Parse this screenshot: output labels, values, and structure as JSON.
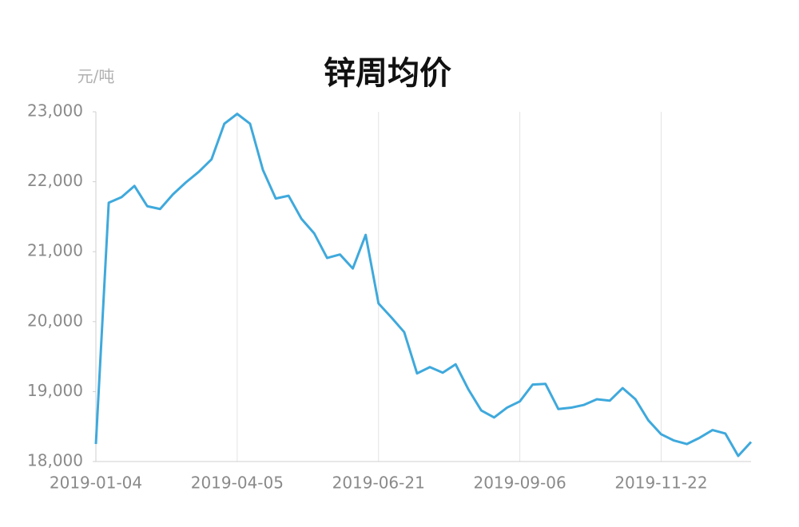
{
  "chart_data": {
    "type": "line",
    "title": "锌周均价",
    "y_label": "元/吨",
    "categories": [
      "2019-01-04",
      null,
      null,
      null,
      null,
      null,
      null,
      null,
      null,
      null,
      null,
      "2019-04-05",
      null,
      null,
      null,
      null,
      null,
      null,
      null,
      null,
      null,
      null,
      "2019-06-21",
      null,
      null,
      null,
      null,
      null,
      null,
      null,
      null,
      null,
      null,
      "2019-09-06",
      null,
      null,
      null,
      null,
      null,
      null,
      null,
      null,
      null,
      null,
      "2019-11-22",
      null,
      null,
      null,
      null,
      null,
      null,
      null
    ],
    "series": [
      {
        "name": "锌周均价",
        "color": "#3fa9dc",
        "values": [
          18250,
          21700,
          21780,
          21940,
          21650,
          21610,
          21820,
          21990,
          22140,
          22320,
          22830,
          22970,
          22830,
          22170,
          21760,
          21800,
          21470,
          21260,
          20910,
          20960,
          20760,
          21240,
          20260,
          20060,
          19850,
          19260,
          19350,
          19270,
          19390,
          19030,
          18730,
          18630,
          18770,
          18860,
          19100,
          19110,
          18750,
          18770,
          18810,
          18890,
          18870,
          19050,
          18890,
          18590,
          18390,
          18300,
          18250,
          18340,
          18450,
          18400,
          18080,
          18280
        ]
      }
    ],
    "ylim": [
      18000,
      23000
    ],
    "yticks": [
      {
        "value": 18000,
        "label": "18,000"
      },
      {
        "value": 19000,
        "label": "19,000"
      },
      {
        "value": 20000,
        "label": "20,000"
      },
      {
        "value": 21000,
        "label": "21,000"
      },
      {
        "value": 22000,
        "label": "22,000"
      },
      {
        "value": 23000,
        "label": "23,000"
      }
    ],
    "x_grid": true
  }
}
